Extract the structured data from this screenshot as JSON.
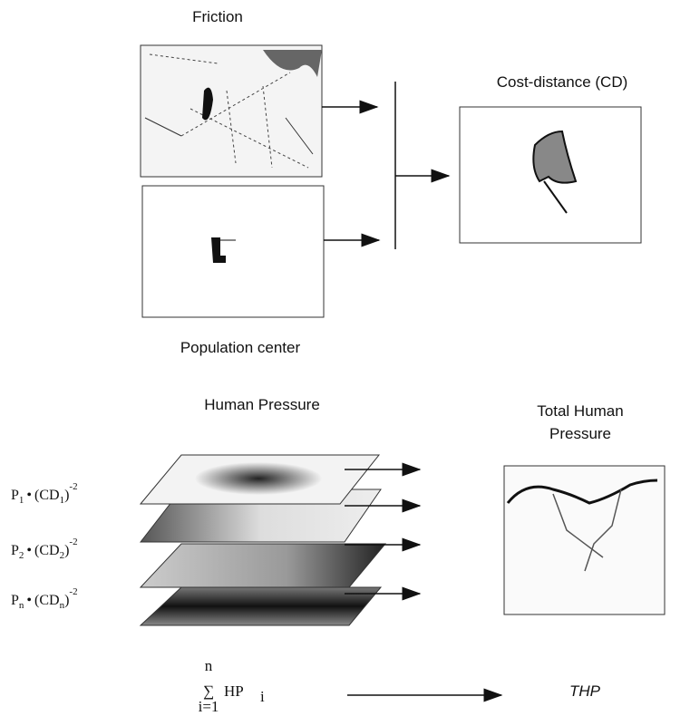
{
  "top": {
    "friction": "Friction",
    "population_center": "Population center",
    "cost_distance": "Cost-distance (CD)"
  },
  "bottom": {
    "human_pressure": "Human Pressure",
    "total_human_pressure": [
      "Total Human",
      "Pressure"
    ],
    "formulas": [
      {
        "p": "P",
        "p_index": "1",
        "dot": "•",
        "cd": "(CD",
        "cd_index": "1",
        "paren": ")",
        "power": "-2"
      },
      {
        "p": "P",
        "p_index": "2",
        "dot": "•",
        "cd": "(CD",
        "cd_index": "2",
        "paren": ")",
        "power": "-2"
      },
      {
        "p": "P",
        "p_index": "n",
        "dot": "•",
        "cd": "(CD",
        "cd_index": "n",
        "paren": ")",
        "power": "-2"
      }
    ],
    "sum": {
      "sigma": "∑",
      "upper": "n",
      "lower": "i=1",
      "term": "HP",
      "term_index": "i"
    },
    "result": "THP"
  }
}
